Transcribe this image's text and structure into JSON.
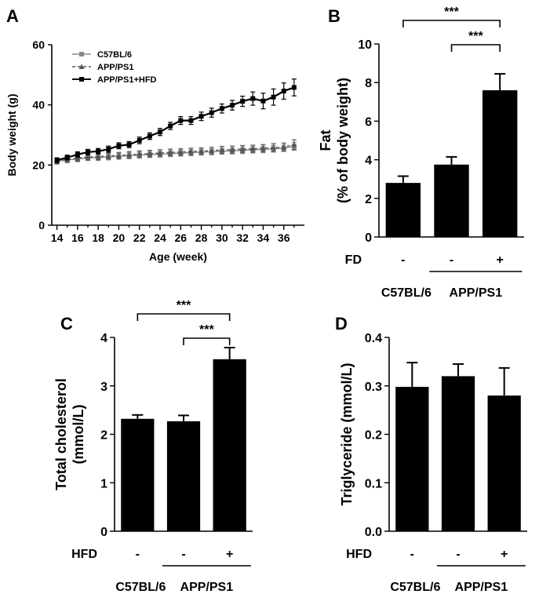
{
  "panels": {
    "A": {
      "letter": "A"
    },
    "B": {
      "letter": "B"
    },
    "C": {
      "letter": "C"
    },
    "D": {
      "letter": "D"
    }
  },
  "chart_data": [
    {
      "id": "A",
      "type": "line",
      "xlabel": "Age (week)",
      "ylabel": "Body weight (g)",
      "xlim": [
        13.5,
        38
      ],
      "ylim": [
        0,
        60
      ],
      "xticks": [
        14,
        16,
        18,
        20,
        22,
        24,
        26,
        28,
        30,
        32,
        34,
        36
      ],
      "yticks": [
        0,
        20,
        40,
        60
      ],
      "legend_position": "top-left",
      "series": [
        {
          "name": "C57BL/6",
          "color": "#888888",
          "marker": "square",
          "x": [
            14,
            15,
            16,
            17,
            18,
            19,
            20,
            21,
            22,
            23,
            24,
            25,
            26,
            27,
            28,
            29,
            30,
            31,
            32,
            33,
            34,
            35,
            36,
            37
          ],
          "y": [
            21.2,
            21.7,
            22.0,
            22.4,
            22.5,
            22.7,
            22.9,
            23.1,
            23.3,
            23.5,
            23.6,
            23.8,
            24.0,
            24.1,
            24.3,
            24.4,
            24.6,
            24.7,
            24.9,
            25.1,
            25.2,
            25.4,
            25.6,
            26.2
          ],
          "err": [
            0.9,
            0.9,
            0.9,
            0.9,
            1.0,
            1.0,
            1.0,
            1.0,
            1.0,
            1.0,
            1.0,
            1.0,
            1.0,
            1.0,
            1.0,
            1.0,
            1.0,
            1.0,
            1.1,
            1.1,
            1.1,
            1.1,
            1.1,
            1.3
          ]
        },
        {
          "name": "APP/PS1",
          "color": "#555555",
          "marker": "triangle",
          "x": [
            14,
            15,
            16,
            17,
            18,
            19,
            20,
            21,
            22,
            23,
            24,
            25,
            26,
            27,
            28,
            29,
            30,
            31,
            32,
            33,
            34,
            35,
            36,
            37
          ],
          "y": [
            21.4,
            21.9,
            22.3,
            22.7,
            22.8,
            23.0,
            23.2,
            23.4,
            23.6,
            23.8,
            24.0,
            24.2,
            24.3,
            24.5,
            24.6,
            24.8,
            25.0,
            25.1,
            25.3,
            25.4,
            25.6,
            25.8,
            26.0,
            26.8
          ],
          "err": [
            1.0,
            1.0,
            1.0,
            1.0,
            1.0,
            1.0,
            1.0,
            1.1,
            1.1,
            1.1,
            1.1,
            1.1,
            1.1,
            1.1,
            1.1,
            1.1,
            1.2,
            1.2,
            1.2,
            1.2,
            1.2,
            1.3,
            1.3,
            1.6
          ]
        },
        {
          "name": "APP/PS1+HFD",
          "color": "#000000",
          "marker": "square",
          "x": [
            14,
            15,
            16,
            17,
            18,
            19,
            20,
            21,
            22,
            23,
            24,
            25,
            26,
            27,
            28,
            29,
            30,
            31,
            32,
            33,
            34,
            35,
            36,
            37
          ],
          "y": [
            21.6,
            22.5,
            23.5,
            24.3,
            24.6,
            25.3,
            26.4,
            26.8,
            28.2,
            29.6,
            31.0,
            33.0,
            34.8,
            34.8,
            36.2,
            37.4,
            38.8,
            39.9,
            41.2,
            42.1,
            41.3,
            42.6,
            44.6,
            45.8
          ],
          "err": [
            0.8,
            0.8,
            0.9,
            0.9,
            0.9,
            1.0,
            1.0,
            1.0,
            1.1,
            1.1,
            1.2,
            1.2,
            1.3,
            1.3,
            1.4,
            1.5,
            1.5,
            1.6,
            1.7,
            2.2,
            2.6,
            2.7,
            2.7,
            2.8
          ]
        }
      ]
    },
    {
      "id": "B",
      "type": "bar",
      "ylabel_line1": "Fat",
      "ylabel_line2": "(% of body weight)",
      "ylim": [
        0,
        10
      ],
      "yticks": [
        0,
        2,
        4,
        6,
        8,
        10
      ],
      "treatment_label": "FD",
      "categories": [
        "-",
        "-",
        "+"
      ],
      "values": [
        2.8,
        3.75,
        7.6
      ],
      "errors": [
        0.35,
        0.4,
        0.85
      ],
      "group_labels": [
        "C57BL/6",
        "APP/PS1"
      ],
      "significance": [
        {
          "from": 0,
          "to": 2,
          "label": "***"
        },
        {
          "from": 1,
          "to": 2,
          "label": "***"
        }
      ]
    },
    {
      "id": "C",
      "type": "bar",
      "ylabel_line1": "Total cholesterol",
      "ylabel_line2": "(mmol/L)",
      "ylim": [
        0,
        4
      ],
      "yticks": [
        0,
        1,
        2,
        3,
        4
      ],
      "treatment_label": "HFD",
      "categories": [
        "-",
        "-",
        "+"
      ],
      "values": [
        2.32,
        2.27,
        3.55
      ],
      "errors": [
        0.08,
        0.12,
        0.24
      ],
      "group_labels": [
        "C57BL/6",
        "APP/PS1"
      ],
      "significance": [
        {
          "from": 0,
          "to": 2,
          "label": "***"
        },
        {
          "from": 1,
          "to": 2,
          "label": "***"
        }
      ]
    },
    {
      "id": "D",
      "type": "bar",
      "ylabel_line1": "Triglyceride (mmol/L)",
      "ylabel_line2": "",
      "ylim": [
        0,
        0.4
      ],
      "yticks": [
        0.0,
        0.1,
        0.2,
        0.3,
        0.4
      ],
      "ytick_decimals": 1,
      "treatment_label": "HFD",
      "categories": [
        "-",
        "-",
        "+"
      ],
      "values": [
        0.298,
        0.32,
        0.28
      ],
      "errors": [
        0.05,
        0.025,
        0.057
      ],
      "group_labels": [
        "C57BL/6",
        "APP/PS1"
      ],
      "significance": []
    }
  ]
}
